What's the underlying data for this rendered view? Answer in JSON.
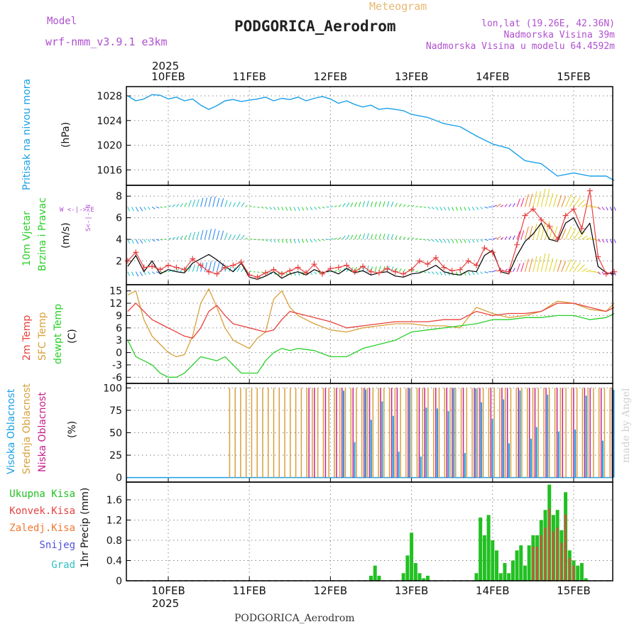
{
  "header": {
    "model_label": "Model",
    "model_name": "wrf-nmm_v3.9.1 e3km",
    "product": "Meteogram",
    "station": "PODGORICA_Aerodrom",
    "coords": "lon,lat (19.26E, 42.36N)",
    "elevation": "Nadmorska Visina 39m",
    "model_elevation": "Nadmorska Visina u modelu 64.4592m",
    "footer_station": "PODGORICA_Aerodrom",
    "watermark": "made by Angel"
  },
  "colors": {
    "pressure": "#1aa0e8",
    "t2m": "#e8403c",
    "tsfc": "#d9a03a",
    "dewpt": "#2ad02a",
    "cloud_high": "#1aa0e8",
    "cloud_mid": "#d9a03a",
    "cloud_low": "#c8208c",
    "precip_total": "#22c022",
    "precip_conv": "#e84040",
    "precip_snow": "#5050e0",
    "grid": "#888888"
  },
  "time_axis": {
    "year": "2025",
    "days": [
      "10FEB",
      "11FEB",
      "12FEB",
      "13FEB",
      "14FEB",
      "15FEB"
    ]
  },
  "chart_data": [
    {
      "id": "pressure",
      "type": "line",
      "ylabel_title": "Pritisak na nivou mora",
      "ylabel_unit": "(hPa)",
      "ylim": [
        1013.5,
        1029.5
      ],
      "yticks": [
        "1016",
        "1020",
        "1024",
        "1028"
      ],
      "x_days": [
        -0.5,
        -0.4,
        -0.3,
        -0.2,
        -0.1,
        0,
        0.1,
        0.2,
        0.3,
        0.4,
        0.5,
        0.6,
        0.7,
        0.8,
        0.9,
        1,
        1.1,
        1.2,
        1.3,
        1.4,
        1.5,
        1.6,
        1.7,
        1.8,
        1.9,
        2,
        2.1,
        2.2,
        2.3,
        2.4,
        2.5,
        2.6,
        2.7,
        2.8,
        2.9,
        3,
        3.2,
        3.4,
        3.6,
        3.8,
        4,
        4.2,
        4.4,
        4.6,
        4.8,
        5,
        5.2,
        5.4,
        5.5
      ],
      "values": [
        1028,
        1027.2,
        1027.5,
        1028.2,
        1028.1,
        1027.5,
        1027.8,
        1027.2,
        1027.5,
        1026.5,
        1025.8,
        1026.4,
        1027.2,
        1027.4,
        1027.1,
        1027.3,
        1027.5,
        1027.8,
        1027.2,
        1027.6,
        1027.4,
        1027.8,
        1027.2,
        1027.6,
        1027.9,
        1027.5,
        1026.8,
        1027.2,
        1026.6,
        1026.2,
        1026.5,
        1025.8,
        1026.0,
        1025.8,
        1025.6,
        1025.0,
        1024.5,
        1023.5,
        1023.0,
        1021.5,
        1020.2,
        1019.5,
        1017.5,
        1017.0,
        1015.0,
        1015.5,
        1015.0,
        1015.0,
        1014.3
      ]
    },
    {
      "id": "wind",
      "type": "line",
      "ylabel_title": "10m Vjetar",
      "ylabel_sub": "Brzina i Pravac",
      "ylabel_unit": "(m/s)",
      "compass": "W <-|-> E",
      "compass_ns": "S<-|->N",
      "ylim": [
        -0.2,
        9
      ],
      "yticks": [
        "2",
        "4",
        "6",
        "8"
      ],
      "series": [
        {
          "name": "speed",
          "x_days": [
            -0.5,
            -0.4,
            -0.3,
            -0.2,
            -0.1,
            0,
            0.1,
            0.2,
            0.3,
            0.4,
            0.5,
            0.6,
            0.7,
            0.8,
            0.9,
            1,
            1.1,
            1.2,
            1.3,
            1.4,
            1.5,
            1.6,
            1.7,
            1.8,
            1.9,
            2,
            2.1,
            2.2,
            2.3,
            2.4,
            2.5,
            2.6,
            2.7,
            2.8,
            2.9,
            3,
            3.1,
            3.2,
            3.3,
            3.4,
            3.5,
            3.6,
            3.7,
            3.8,
            3.9,
            4,
            4.1,
            4.2,
            4.3,
            4.4,
            4.5,
            4.6,
            4.7,
            4.8,
            4.9,
            5,
            5.1,
            5.2,
            5.3,
            5.4,
            5.5
          ],
          "values": [
            1.5,
            2.5,
            1.0,
            2.0,
            0.8,
            1.2,
            1.0,
            0.9,
            1.8,
            2.2,
            2.6,
            2.1,
            1.5,
            1.0,
            1.8,
            0.5,
            0.3,
            0.6,
            1.0,
            0.4,
            0.8,
            1.0,
            0.7,
            1.2,
            0.9,
            1.1,
            0.8,
            1.3,
            0.9,
            1.1,
            0.7,
            0.9,
            1.0,
            0.6,
            0.5,
            0.8,
            0.9,
            1.2,
            1.6,
            1.0,
            0.8,
            0.7,
            1.1,
            1.0,
            2.5,
            3.0,
            1.0,
            0.8,
            2.5,
            3.8,
            4.5,
            5.5,
            4.0,
            3.8,
            5.5,
            6.0,
            4.5,
            5.5,
            1.5,
            0.9,
            0.8
          ]
        },
        {
          "name": "gust",
          "x_days": [
            -0.5,
            -0.4,
            -0.3,
            -0.2,
            -0.1,
            0,
            0.1,
            0.2,
            0.3,
            0.4,
            0.5,
            0.6,
            0.7,
            0.8,
            0.9,
            1,
            1.1,
            1.2,
            1.3,
            1.4,
            1.5,
            1.6,
            1.7,
            1.8,
            1.9,
            2,
            2.1,
            2.2,
            2.3,
            2.4,
            2.5,
            2.6,
            2.7,
            2.8,
            2.9,
            3,
            3.1,
            3.2,
            3.3,
            3.4,
            3.5,
            3.6,
            3.7,
            3.8,
            3.9,
            4,
            4.1,
            4.2,
            4.3,
            4.4,
            4.5,
            4.6,
            4.7,
            4.8,
            4.9,
            5,
            5.1,
            5.2,
            5.3,
            5.4,
            5.5
          ],
          "values": [
            2.0,
            2.8,
            1.4,
            1.5,
            1.2,
            1.6,
            1.4,
            1.2,
            2.2,
            1.6,
            1.0,
            0.8,
            1.4,
            1.6,
            1.9,
            0.7,
            0.5,
            0.9,
            1.2,
            0.8,
            1.1,
            1.4,
            0.9,
            1.7,
            0.8,
            1.3,
            1.4,
            1.6,
            1.0,
            1.5,
            1.0,
            0.9,
            1.3,
            1.0,
            0.8,
            1.2,
            2.0,
            1.7,
            2.3,
            1.4,
            1.1,
            1.2,
            2.0,
            1.6,
            3.2,
            2.8,
            1.1,
            1.0,
            3.5,
            6.2,
            6.8,
            5.8,
            5.2,
            4.0,
            6.2,
            6.8,
            5.0,
            8.5,
            2.4,
            0.8,
            1.0
          ]
        }
      ]
    },
    {
      "id": "temperature",
      "type": "line",
      "ylabel_t2m": "2m Temp",
      "ylabel_tsfc": "SFC Temp",
      "ylabel_dew": "dewpt Temp",
      "ylabel_unit": "(C)",
      "ylim": [
        -7.5,
        16.5
      ],
      "yticks": [
        "-6",
        "-3",
        "0",
        "3",
        "6",
        "9",
        "12",
        "15"
      ],
      "series": [
        {
          "name": "2m Temp",
          "x_days": [
            -0.5,
            -0.4,
            -0.3,
            -0.2,
            -0.1,
            0,
            0.1,
            0.2,
            0.3,
            0.4,
            0.5,
            0.6,
            0.7,
            0.8,
            0.9,
            1,
            1.1,
            1.2,
            1.3,
            1.4,
            1.5,
            1.6,
            1.8,
            2,
            2.2,
            2.4,
            2.6,
            2.8,
            3,
            3.2,
            3.4,
            3.6,
            3.8,
            4,
            4.2,
            4.4,
            4.6,
            4.8,
            5,
            5.2,
            5.4,
            5.5
          ],
          "values": [
            10,
            12,
            10,
            8,
            7,
            6,
            5,
            4,
            3.5,
            6,
            10,
            11.5,
            9,
            7,
            6.5,
            6,
            5.5,
            5,
            5.5,
            8,
            10,
            9.5,
            8.5,
            7.5,
            6,
            6.5,
            7,
            7.5,
            7.5,
            7.5,
            8,
            8,
            10,
            9,
            9.5,
            9.5,
            10,
            12,
            12,
            11,
            10,
            11
          ]
        },
        {
          "name": "SFC Temp",
          "x_days": [
            -0.5,
            -0.4,
            -0.3,
            -0.2,
            -0.1,
            0,
            0.1,
            0.2,
            0.3,
            0.4,
            0.5,
            0.6,
            0.7,
            0.8,
            0.9,
            1,
            1.1,
            1.2,
            1.3,
            1.4,
            1.5,
            1.6,
            1.8,
            2,
            2.2,
            2.4,
            2.6,
            2.8,
            3,
            3.2,
            3.4,
            3.6,
            3.8,
            4,
            4.2,
            4.4,
            4.6,
            4.8,
            5,
            5.2,
            5.4,
            5.5
          ],
          "values": [
            14,
            15,
            8,
            4,
            2,
            0,
            -1,
            -0.5,
            4,
            12,
            15.5,
            11,
            6,
            3,
            2,
            1,
            3.5,
            5,
            13,
            15,
            11,
            9,
            7,
            5.5,
            5,
            6,
            6.5,
            7,
            7,
            6.5,
            6.5,
            6,
            11,
            9.5,
            8.5,
            9,
            10,
            12.5,
            12,
            10.5,
            10,
            12
          ]
        },
        {
          "name": "dewpt Temp",
          "x_days": [
            -0.5,
            -0.4,
            -0.3,
            -0.2,
            -0.1,
            0,
            0.1,
            0.2,
            0.3,
            0.4,
            0.5,
            0.6,
            0.7,
            0.8,
            0.9,
            1,
            1.1,
            1.2,
            1.3,
            1.4,
            1.5,
            1.6,
            1.8,
            2,
            2.2,
            2.4,
            2.6,
            2.8,
            3,
            3.2,
            3.4,
            3.6,
            3.8,
            4,
            4.2,
            4.4,
            4.6,
            4.8,
            5,
            5.2,
            5.4,
            5.5
          ],
          "values": [
            3,
            -1,
            -2,
            -3,
            -5,
            -6,
            -6,
            -5,
            -3,
            -1,
            -1.5,
            -2,
            -1,
            -3,
            -5,
            -5,
            -5,
            -2,
            0,
            1,
            0.5,
            1,
            0.5,
            -1,
            -1,
            1,
            2,
            3,
            5,
            5.5,
            6,
            6.5,
            7,
            8,
            8,
            8.5,
            8.5,
            9,
            9,
            8,
            8.5,
            9.5
          ]
        }
      ]
    },
    {
      "id": "clouds",
      "type": "bar",
      "ylabel_high": "Visoka Oblacnost",
      "ylabel_mid": "Srednja Oblacnost",
      "ylabel_low": "Niska Oblacnost",
      "ylabel_unit": "(%)",
      "ylim": [
        -5,
        105
      ],
      "yticks": [
        "0",
        "25",
        "50",
        "75",
        "100"
      ],
      "mid_on_from": 0.75,
      "low_on_from": 1.6,
      "high_on_from": 2.1
    },
    {
      "id": "precip",
      "type": "bar",
      "legend": [
        "Ukupna Kisa",
        "Konvek.Kisa",
        "Zaledj.Kisa",
        "Snijeg",
        "Grad"
      ],
      "ylabel_unit": "1hr Precip (mm)",
      "ylim": [
        0,
        1.95
      ],
      "yticks": [
        "0",
        "0.4",
        "0.8",
        "1.2",
        "1.6"
      ],
      "x_days": [
        2.5,
        2.55,
        2.6,
        2.9,
        2.95,
        3.0,
        3.05,
        3.1,
        3.15,
        3.2,
        3.8,
        3.85,
        3.9,
        3.95,
        4.0,
        4.05,
        4.1,
        4.15,
        4.2,
        4.25,
        4.3,
        4.35,
        4.4,
        4.45,
        4.5,
        4.55,
        4.6,
        4.65,
        4.7,
        4.75,
        4.8,
        4.85,
        4.9,
        4.95,
        5.0,
        5.05,
        5.1,
        5.15
      ],
      "values": [
        0.1,
        0.3,
        0.1,
        0.15,
        0.5,
        0.95,
        0.35,
        0.15,
        0.05,
        0.1,
        0.15,
        1.25,
        0.9,
        1.3,
        0.8,
        0.6,
        0.15,
        0.35,
        0.15,
        0.4,
        0.6,
        0.7,
        0.3,
        0.7,
        0.9,
        0.9,
        1.2,
        1.4,
        1.9,
        1.3,
        1.4,
        1.0,
        1.75,
        0.6,
        0.4,
        0.3,
        0.35,
        0.05
      ]
    }
  ]
}
